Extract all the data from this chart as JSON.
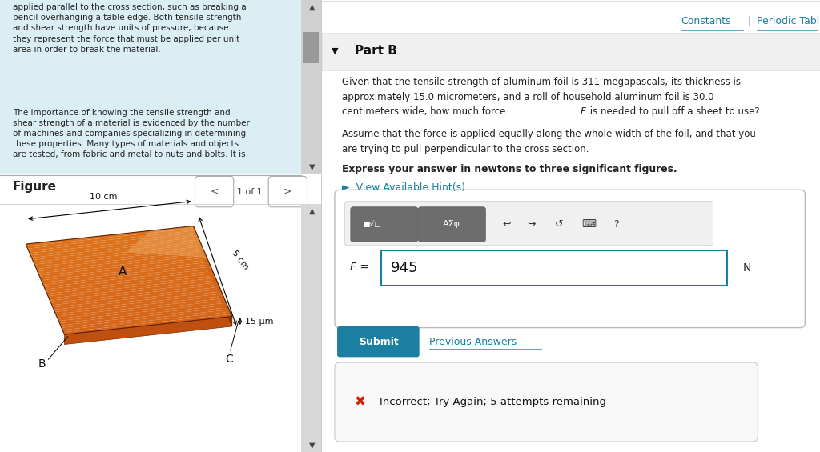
{
  "left_panel_bg": "#dbeef4",
  "left_panel_text1": "applied parallel to the cross section, such as breaking a\npencil overhanging a table edge. Both tensile strength\nand shear strength have units of pressure, because\nthey represent the force that must be applied per unit\narea in order to break the material.",
  "left_panel_text2": "The importance of knowing the tensile strength and\nshear strength of a material is evidenced by the number\nof machines and companies specializing in determining\nthese properties. Many types of materials and objects\nare tested, from fabric and metal to nuts and bolts. It is",
  "figure_label": "Figure",
  "figure_page": "1 of 1",
  "dim_10cm": "10 cm",
  "dim_5cm": "5 cm",
  "dim_15um": "15 μm",
  "label_A": "A",
  "label_B": "B",
  "label_C": "C",
  "right_bg": "#ffffff",
  "constants_text": "Constants",
  "periodic_text": "Periodic Table",
  "part_b_text": "Part B",
  "part_b_header_bg": "#f0f0f0",
  "question_text1": "Given that the tensile strength of aluminum foil is 311 megapascals, its thickness is\napproximately 15.0 micrometers, and a roll of household aluminum foil is 30.0\ncentimeters wide, how much force ",
  "question_text1c": " is needed to pull off a sheet to use?",
  "question_text2": "Assume that the force is applied equally along the whole width of the foil, and that you\nare trying to pull perpendicular to the cross section.",
  "question_bold": "Express your answer in newtons to three significant figures.",
  "hint_text": "►  View Available Hint(s)",
  "hint_color": "#1a7fa0",
  "input_box_value": "945",
  "f_label": "F =",
  "n_label": "N",
  "submit_text": "Submit",
  "submit_bg": "#1a7fa0",
  "prev_answers": "Previous Answers",
  "incorrect_text": "Incorrect; Try Again; 5 attempts remaining",
  "incorrect_bg": "#f8f8f8",
  "foil_color_main": "#d4651a",
  "foil_color_light": "#e8944a",
  "foil_color_dark": "#8b3a0a",
  "foil_color_side": "#c05010"
}
